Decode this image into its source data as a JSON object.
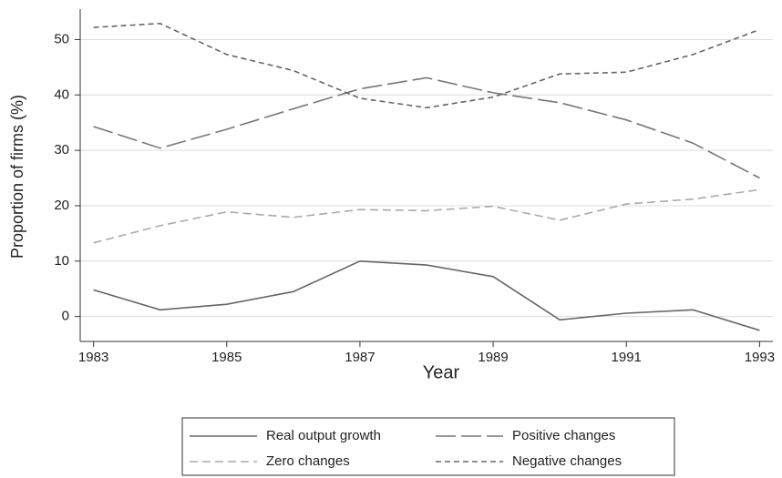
{
  "chart_data": {
    "type": "line",
    "x_label": "Year",
    "y_label": "Proportion of firms (%)",
    "x": [
      1983,
      1984,
      1985,
      1986,
      1987,
      1988,
      1989,
      1990,
      1991,
      1992,
      1993
    ],
    "series": [
      {
        "name": "Real output growth",
        "color": "#666666",
        "dash": "solid",
        "values": [
          4.8,
          1.2,
          2.2,
          4.5,
          10.0,
          9.3,
          7.2,
          -0.6,
          0.6,
          1.2,
          -2.5
        ]
      },
      {
        "name": "Positive changes",
        "color": "#777777",
        "dash": "longdash",
        "values": [
          34.3,
          30.4,
          33.8,
          37.5,
          41.1,
          43.1,
          40.4,
          38.6,
          35.5,
          31.3,
          25.0
        ]
      },
      {
        "name": "Zero changes",
        "color": "#aaaaaa",
        "dash": "dash",
        "values": [
          13.3,
          16.4,
          18.9,
          17.9,
          19.3,
          19.1,
          19.9,
          17.4,
          20.3,
          21.2,
          22.9
        ]
      },
      {
        "name": "Negative changes",
        "color": "#666666",
        "dash": "shortdash",
        "values": [
          52.2,
          52.9,
          47.3,
          44.4,
          39.4,
          37.7,
          39.6,
          43.8,
          44.1,
          47.3,
          51.8
        ]
      }
    ],
    "xlim": [
      1982.8,
      1993.2
    ],
    "xticks": [
      1983,
      1985,
      1987,
      1989,
      1991,
      1993
    ],
    "ylim": [
      -4.5,
      55.5
    ],
    "yticks": [
      0,
      10,
      20,
      30,
      40,
      50
    ],
    "grid": true,
    "legend": "bottom"
  }
}
